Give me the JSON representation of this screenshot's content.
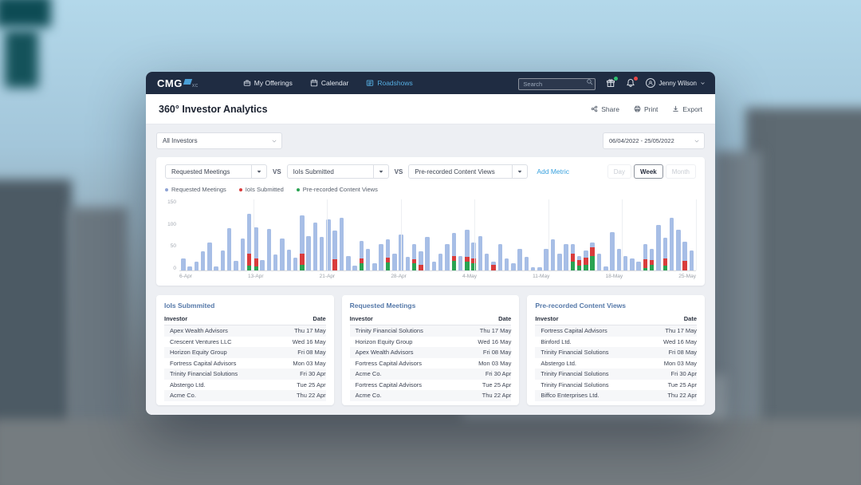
{
  "navbar": {
    "brand": {
      "text": "CMG",
      "sub": "XC"
    },
    "items": [
      {
        "label": "My Offerings",
        "icon": "briefcase-icon",
        "active": false
      },
      {
        "label": "Calendar",
        "icon": "calendar-icon",
        "active": false
      },
      {
        "label": "Roadshows",
        "icon": "roadshows-list-icon",
        "active": true
      }
    ],
    "search_placeholder": "Search",
    "badges": {
      "gift_badge_color": "#2fbf71",
      "bell_badge_color": "#e84747"
    },
    "user": {
      "name": "Jenny Wilson"
    }
  },
  "header": {
    "title": "360° Investor Analytics",
    "actions": [
      {
        "label": "Share",
        "icon": "share-icon"
      },
      {
        "label": "Print",
        "icon": "print-icon"
      },
      {
        "label": "Export",
        "icon": "export-download-icon"
      }
    ]
  },
  "filters": {
    "investor_filter": "All Investors",
    "date_range": "06/04/2022 - 25/05/2022"
  },
  "metrics": {
    "separator": "VS",
    "selects": [
      "Requested Meetings",
      "IoIs Submitted",
      "Pre-recorded Content Views"
    ],
    "add_metric": "Add Metric",
    "granularity": {
      "options": [
        "Day",
        "Week",
        "Month"
      ],
      "selected": "Week"
    }
  },
  "legend": [
    {
      "label": "Requested Meetings",
      "color": "#8fa3d4"
    },
    {
      "label": "IoIs Submitted",
      "color": "#d93c3c"
    },
    {
      "label": "Pre-recorded Content Views",
      "color": "#2aa352"
    }
  ],
  "chart_data": {
    "type": "bar",
    "stacked": true,
    "title": "",
    "xlabel": "",
    "ylabel": "",
    "ylim": [
      0,
      150
    ],
    "yticks": [
      0,
      50,
      100,
      150
    ],
    "x_axis_labels": [
      "6-Apr",
      "13-Apr",
      "21-Apr",
      "28-Apr",
      "4-May",
      "11-May",
      "18-May",
      "25-May"
    ],
    "grid": "vertical-weekly",
    "legend_position": "top-left",
    "series_meta": [
      {
        "name": "Pre-recorded Content Views",
        "key": "green",
        "color": "#2aa352",
        "stack_order": "bottom"
      },
      {
        "name": "IoIs Submitted",
        "key": "red",
        "color": "#d93c3c",
        "stack_order": "middle"
      },
      {
        "name": "Requested Meetings",
        "key": "blue",
        "color": "#a7bee6",
        "stack_order": "top"
      }
    ],
    "segment_colors": {
      "green": "#2aa352",
      "red": "#d93c3c",
      "blue": "#a7bee6"
    },
    "bars_segment_order": [
      "green",
      "red",
      "blue"
    ],
    "bars": [
      [
        0,
        0,
        25
      ],
      [
        0,
        0,
        8
      ],
      [
        0,
        0,
        18
      ],
      [
        0,
        0,
        40
      ],
      [
        0,
        0,
        58
      ],
      [
        0,
        0,
        8
      ],
      [
        0,
        0,
        42
      ],
      [
        0,
        0,
        88
      ],
      [
        0,
        0,
        20
      ],
      [
        0,
        0,
        67
      ],
      [
        10,
        25,
        83
      ],
      [
        8,
        17,
        65
      ],
      [
        0,
        0,
        21
      ],
      [
        0,
        0,
        87
      ],
      [
        0,
        0,
        34
      ],
      [
        0,
        0,
        66
      ],
      [
        0,
        0,
        44
      ],
      [
        0,
        0,
        27
      ],
      [
        12,
        23,
        80
      ],
      [
        0,
        0,
        72
      ],
      [
        0,
        0,
        100
      ],
      [
        0,
        0,
        70
      ],
      [
        0,
        0,
        107
      ],
      [
        0,
        24,
        60
      ],
      [
        0,
        0,
        110
      ],
      [
        0,
        0,
        30
      ],
      [
        0,
        0,
        10
      ],
      [
        15,
        10,
        37
      ],
      [
        0,
        0,
        45
      ],
      [
        0,
        0,
        15
      ],
      [
        0,
        0,
        55
      ],
      [
        17,
        10,
        38
      ],
      [
        0,
        0,
        35
      ],
      [
        0,
        0,
        75
      ],
      [
        0,
        0,
        28
      ],
      [
        15,
        8,
        32
      ],
      [
        0,
        12,
        28
      ],
      [
        0,
        0,
        70
      ],
      [
        0,
        0,
        18
      ],
      [
        0,
        0,
        35
      ],
      [
        0,
        0,
        55
      ],
      [
        20,
        10,
        48
      ],
      [
        0,
        0,
        30
      ],
      [
        18,
        10,
        57
      ],
      [
        15,
        10,
        33
      ],
      [
        0,
        0,
        72
      ],
      [
        0,
        0,
        35
      ],
      [
        0,
        12,
        6
      ],
      [
        0,
        0,
        55
      ],
      [
        0,
        0,
        25
      ],
      [
        0,
        0,
        15
      ],
      [
        0,
        0,
        45
      ],
      [
        0,
        0,
        28
      ],
      [
        0,
        0,
        6
      ],
      [
        0,
        0,
        6
      ],
      [
        0,
        0,
        45
      ],
      [
        0,
        0,
        65
      ],
      [
        0,
        0,
        35
      ],
      [
        0,
        0,
        55
      ],
      [
        18,
        17,
        20
      ],
      [
        10,
        12,
        8
      ],
      [
        12,
        15,
        15
      ],
      [
        30,
        18,
        10
      ],
      [
        0,
        0,
        35
      ],
      [
        0,
        0,
        8
      ],
      [
        0,
        0,
        80
      ],
      [
        0,
        0,
        45
      ],
      [
        0,
        0,
        30
      ],
      [
        0,
        0,
        25
      ],
      [
        0,
        0,
        18
      ],
      [
        5,
        18,
        32
      ],
      [
        12,
        10,
        23
      ],
      [
        0,
        0,
        95
      ],
      [
        10,
        15,
        43
      ],
      [
        0,
        0,
        110
      ],
      [
        0,
        0,
        85
      ],
      [
        0,
        20,
        40
      ],
      [
        0,
        0,
        42
      ]
    ]
  },
  "tables": [
    {
      "title": "IoIs Submmited",
      "columns": [
        "Investor",
        "Date"
      ],
      "rows": [
        [
          "Apex Wealth Advisors",
          "Thu 17 May"
        ],
        [
          "Crescent Ventures LLC",
          "Wed 16 May"
        ],
        [
          "Horizon Equity Group",
          "Fri 08 May"
        ],
        [
          "Fortress Capital Advisors",
          "Mon 03 May"
        ],
        [
          "Trinity Financial Solutions",
          "Fri 30 Apr"
        ],
        [
          "Abstergo Ltd.",
          "Tue 25 Apr"
        ],
        [
          "Acme Co.",
          "Thu 22 Apr"
        ]
      ]
    },
    {
      "title": "Requested Meetings",
      "columns": [
        "Investor",
        "Date"
      ],
      "rows": [
        [
          "Trinity Financial Solutions",
          "Thu 17 May"
        ],
        [
          "Horizon Equity Group",
          "Wed 16 May"
        ],
        [
          "Apex Wealth Advisors",
          "Fri 08 May"
        ],
        [
          "Fortress Capital Advisors",
          "Mon 03 May"
        ],
        [
          "Acme Co.",
          "Fri 30 Apr"
        ],
        [
          "Fortress Capital Advisors",
          "Tue 25 Apr"
        ],
        [
          "Acme Co.",
          "Thu 22 Apr"
        ]
      ]
    },
    {
      "title": "Pre-recorded Content Views",
      "columns": [
        "Investor",
        "Date"
      ],
      "rows": [
        [
          "Fortress Capital Advisors",
          "Thu 17 May"
        ],
        [
          "Binford Ltd.",
          "Wed 16 May"
        ],
        [
          "Trinity Financial Solutions",
          "Fri 08 May"
        ],
        [
          "Abstergo Ltd.",
          "Mon 03 May"
        ],
        [
          "Trinity Financial Solutions",
          "Fri 30 Apr"
        ],
        [
          "Trinity Financial Solutions",
          "Tue 25 Apr"
        ],
        [
          "Biffco Enterprises Ltd.",
          "Thu 22 Apr"
        ]
      ]
    }
  ]
}
